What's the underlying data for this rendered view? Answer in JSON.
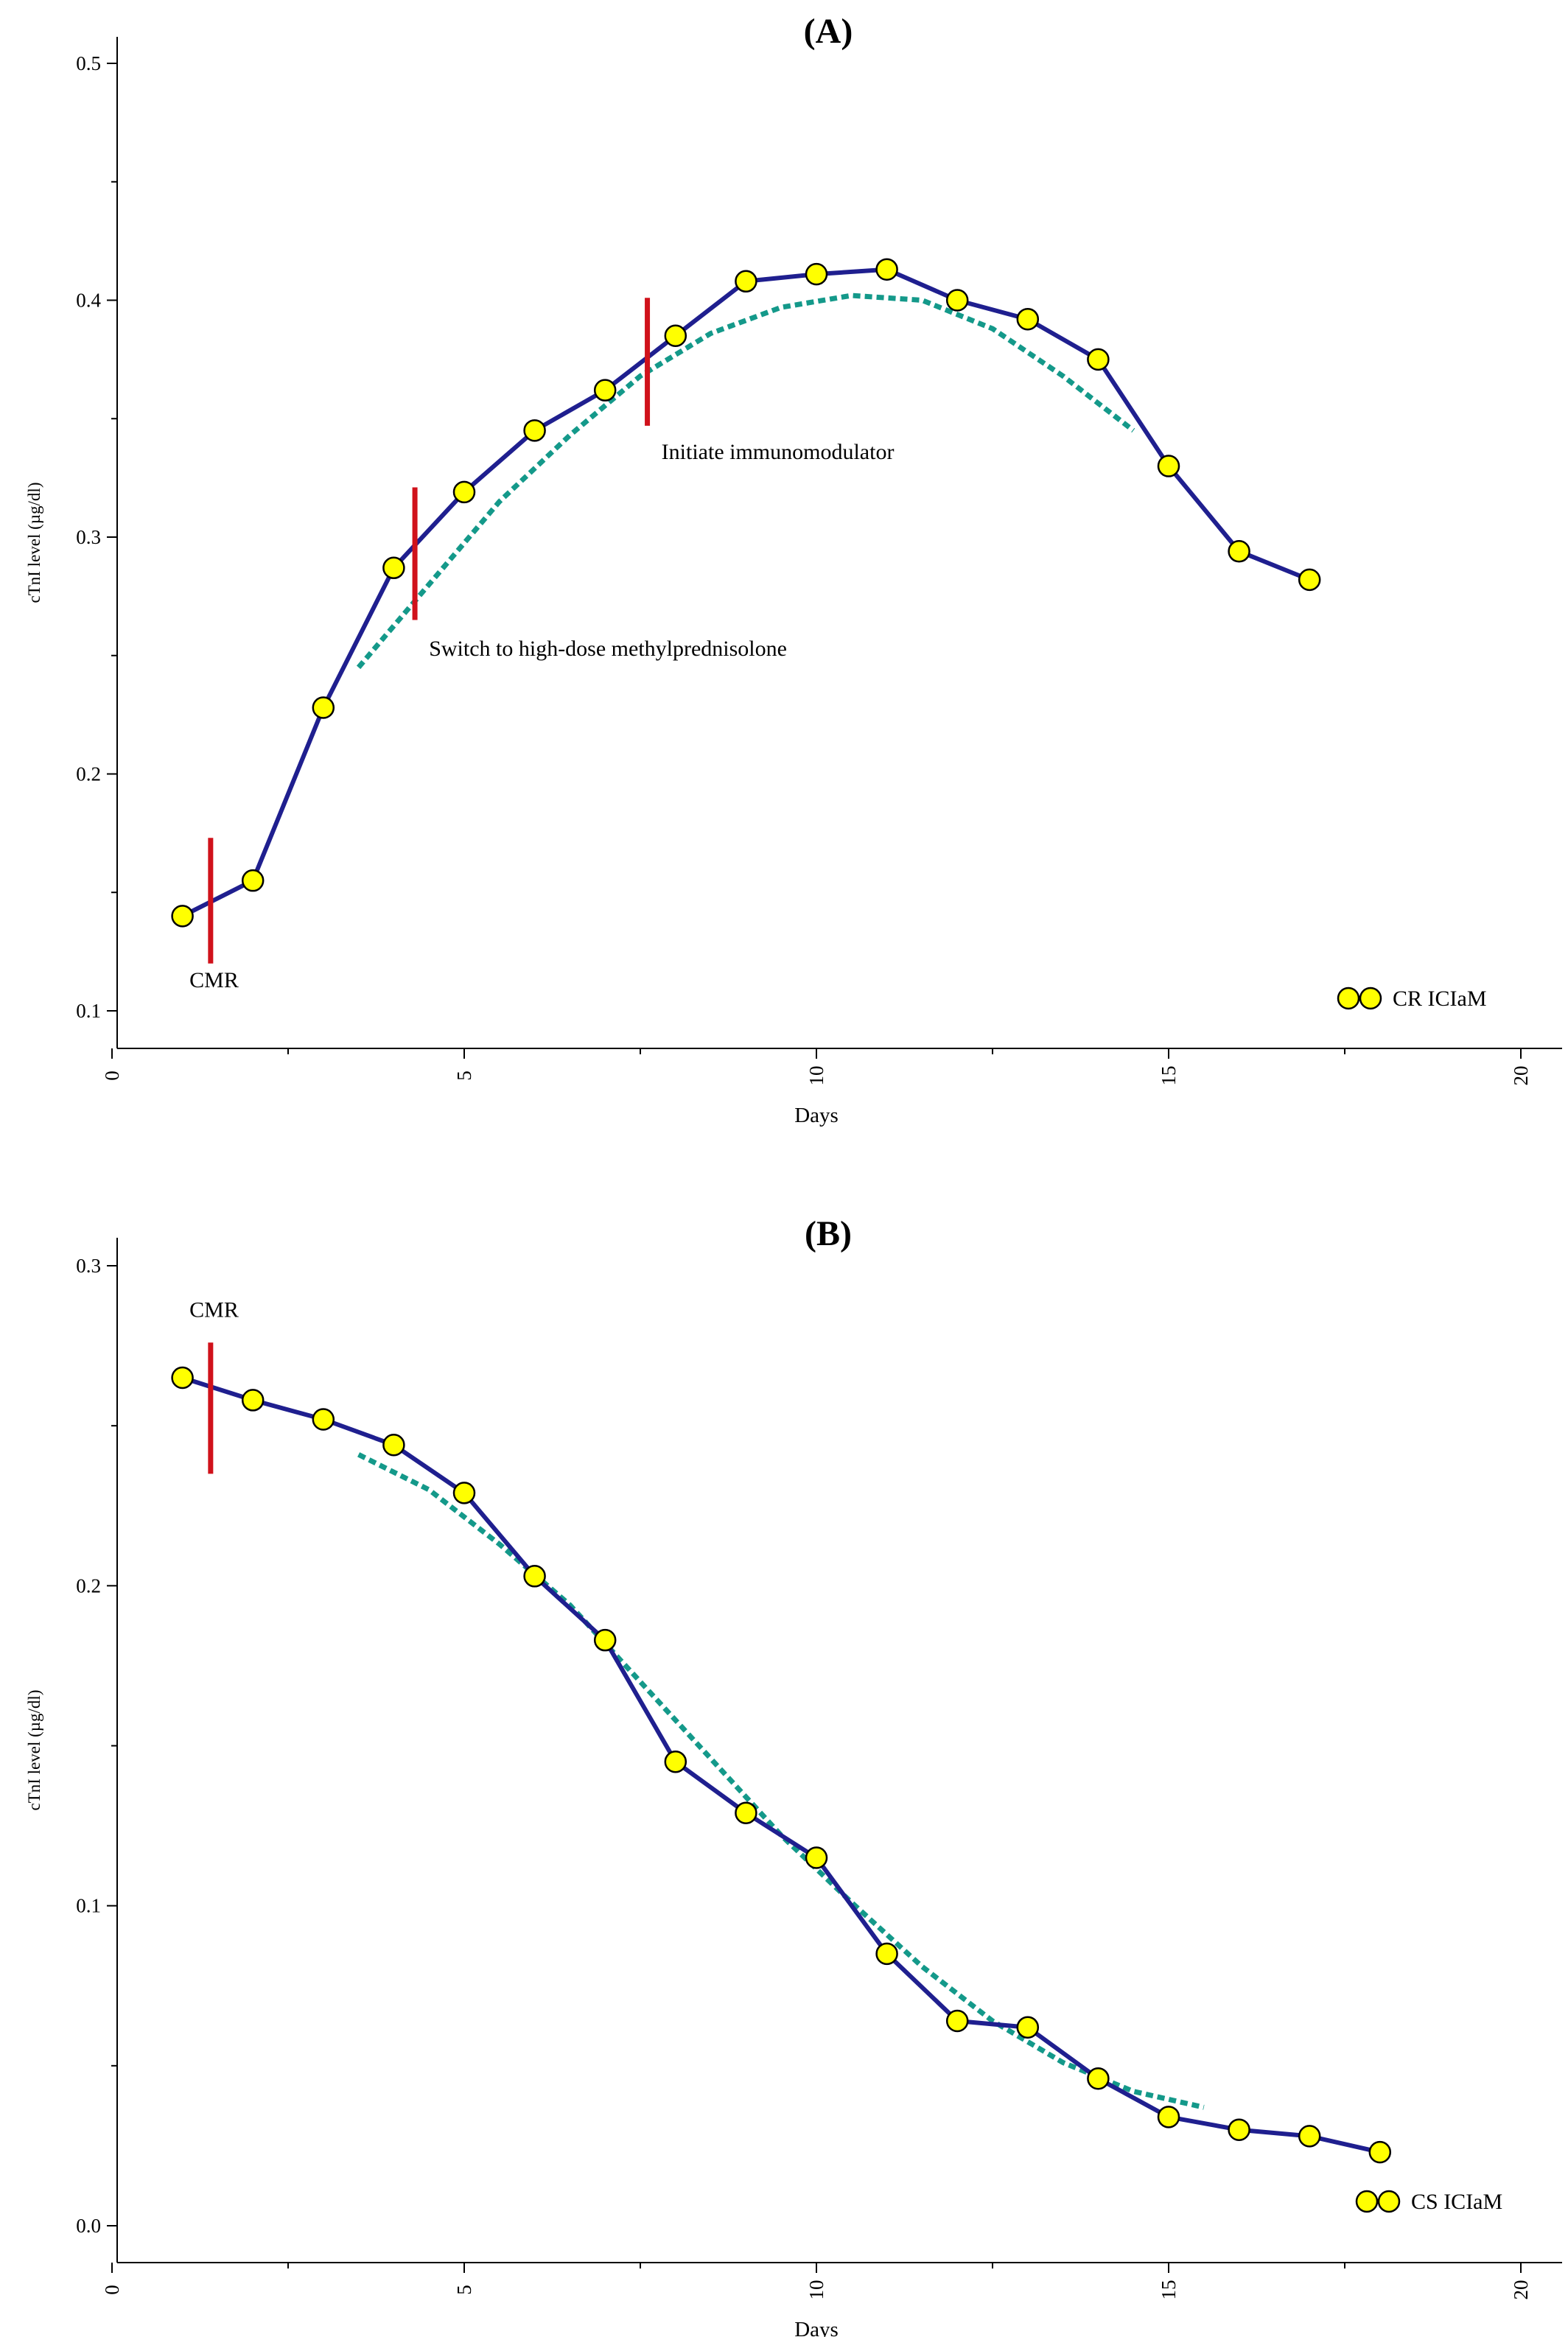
{
  "colors": {
    "line": "#1f1f8f",
    "marker_fill": "#ffff00",
    "marker_stroke": "#000000",
    "trend": "#14998a",
    "event": "#d0121b",
    "axis": "#000000"
  },
  "chart_data": [
    {
      "panel_label": "(A)",
      "type": "line",
      "xlabel": "Days",
      "ylabel": "cTnI level (µg/dl)",
      "xlim": [
        0,
        20
      ],
      "ylim": [
        0.1,
        0.5
      ],
      "xticks": [
        0,
        5,
        10,
        15,
        20
      ],
      "yticks": [
        0.1,
        0.2,
        0.3,
        0.4,
        0.5
      ],
      "xtick_labels": [
        "0",
        "5",
        "10",
        "15",
        "20"
      ],
      "ytick_labels": [
        "0.1",
        "0.2",
        "0.3",
        "0.4",
        "0.5"
      ],
      "legend": {
        "label": "CR ICIaM",
        "position": "bottom-right"
      },
      "series": [
        {
          "name": "CR ICIaM",
          "x": [
            1,
            2,
            3,
            4,
            5,
            6,
            7,
            8,
            9,
            10,
            11,
            12,
            13,
            14,
            15,
            16,
            17
          ],
          "y": [
            0.14,
            0.155,
            0.228,
            0.287,
            0.319,
            0.345,
            0.362,
            0.385,
            0.408,
            0.411,
            0.413,
            0.4,
            0.392,
            0.375,
            0.33,
            0.294,
            0.282
          ]
        }
      ],
      "trend": {
        "x": [
          3.5,
          4.5,
          5.5,
          6.5,
          7.5,
          8.5,
          9.5,
          10.5,
          11.5,
          12.5,
          13.5,
          14.5
        ],
        "y": [
          0.245,
          0.28,
          0.315,
          0.343,
          0.368,
          0.386,
          0.397,
          0.402,
          0.4,
          0.388,
          0.368,
          0.345
        ]
      },
      "events": [
        {
          "x": 1.4,
          "y_from": 0.12,
          "y_to": 0.173,
          "label": "CMR",
          "label_x": 1.1,
          "label_y": 0.11
        },
        {
          "x": 4.3,
          "y_from": 0.265,
          "y_to": 0.321,
          "label": "Switch to high-dose methylprednisolone",
          "label_x": 4.5,
          "label_y": 0.25
        },
        {
          "x": 7.6,
          "y_from": 0.347,
          "y_to": 0.401,
          "label": "Initiate immunomodulator",
          "label_x": 7.8,
          "label_y": 0.333
        }
      ]
    },
    {
      "panel_label": "(B)",
      "type": "line",
      "xlabel": "Days",
      "ylabel": "cTnI level (µg/dl)",
      "xlim": [
        0,
        20
      ],
      "ylim": [
        0.0,
        0.3
      ],
      "xticks": [
        0,
        5,
        10,
        15,
        20
      ],
      "yticks": [
        0.0,
        0.1,
        0.2,
        0.3
      ],
      "xtick_labels": [
        "0",
        "5",
        "10",
        "15",
        "20"
      ],
      "ytick_labels": [
        "0.0",
        "0.1",
        "0.2",
        "0.3"
      ],
      "legend": {
        "label": "CS ICIaM",
        "position": "bottom-right"
      },
      "series": [
        {
          "name": "CS ICIaM",
          "x": [
            1,
            2,
            3,
            4,
            5,
            6,
            7,
            8,
            9,
            10,
            11,
            12,
            13,
            14,
            15,
            16,
            17,
            18
          ],
          "y": [
            0.265,
            0.258,
            0.252,
            0.244,
            0.229,
            0.203,
            0.183,
            0.145,
            0.129,
            0.115,
            0.085,
            0.064,
            0.062,
            0.046,
            0.034,
            0.03,
            0.028,
            0.023
          ]
        }
      ],
      "trend": {
        "x": [
          3.5,
          4.5,
          5.5,
          6.5,
          7.5,
          8.5,
          9.5,
          10.5,
          11.5,
          12.5,
          13.5,
          14.5,
          15.5
        ],
        "y": [
          0.241,
          0.23,
          0.213,
          0.194,
          0.17,
          0.146,
          0.122,
          0.101,
          0.081,
          0.064,
          0.051,
          0.042,
          0.037
        ]
      },
      "events": [
        {
          "x": 1.4,
          "y_from": 0.235,
          "y_to": 0.276,
          "label": "CMR",
          "label_x": 1.1,
          "label_y": 0.284
        }
      ]
    }
  ]
}
